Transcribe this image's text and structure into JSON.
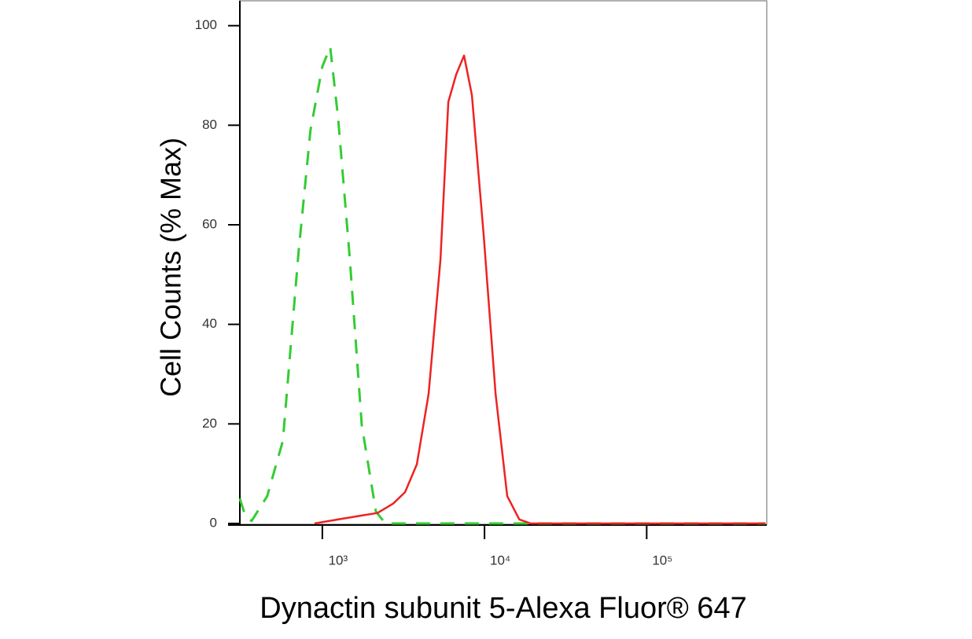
{
  "chart_data": {
    "type": "line",
    "x_label": "Dynactin subunit 5-Alexa Fluor® 647",
    "y_label": "Cell Counts (% Max)",
    "log_x": true,
    "xlim": [
      310,
      550000
    ],
    "ylim": [
      0,
      105
    ],
    "xticks": [
      {
        "value": 1000,
        "label": "10³"
      },
      {
        "value": 10000,
        "label": "10⁴"
      },
      {
        "value": 100000,
        "label": "10⁵"
      }
    ],
    "yticks": [
      0,
      20,
      40,
      60,
      80,
      100
    ],
    "series": [
      {
        "color": "#33cc33",
        "dashed": true,
        "x": [
          310,
          334,
          366,
          457,
          571,
          714,
          845,
          1000,
          1118,
          1251,
          1479,
          1750,
          2140,
          2445,
          8360,
          540000
        ],
        "values": [
          5,
          1.6,
          0.5,
          5.5,
          16.6,
          54.6,
          79,
          91.8,
          95.7,
          81.5,
          53,
          19.8,
          2.4,
          0,
          0,
          0
        ]
      },
      {
        "color": "#ee2222",
        "dashed": false,
        "x": [
          894,
          1251,
          1750,
          2188,
          2735,
          3236,
          3828,
          4520,
          5350,
          5980,
          6690,
          7480,
          8360,
          9890,
          11700,
          13800,
          16400,
          19300,
          540000
        ],
        "values": [
          0,
          0.8,
          1.6,
          2.1,
          4,
          6.3,
          11.9,
          26,
          53,
          84.7,
          90.2,
          94,
          86,
          57.8,
          26,
          5.5,
          0.8,
          0,
          0
        ]
      }
    ]
  }
}
